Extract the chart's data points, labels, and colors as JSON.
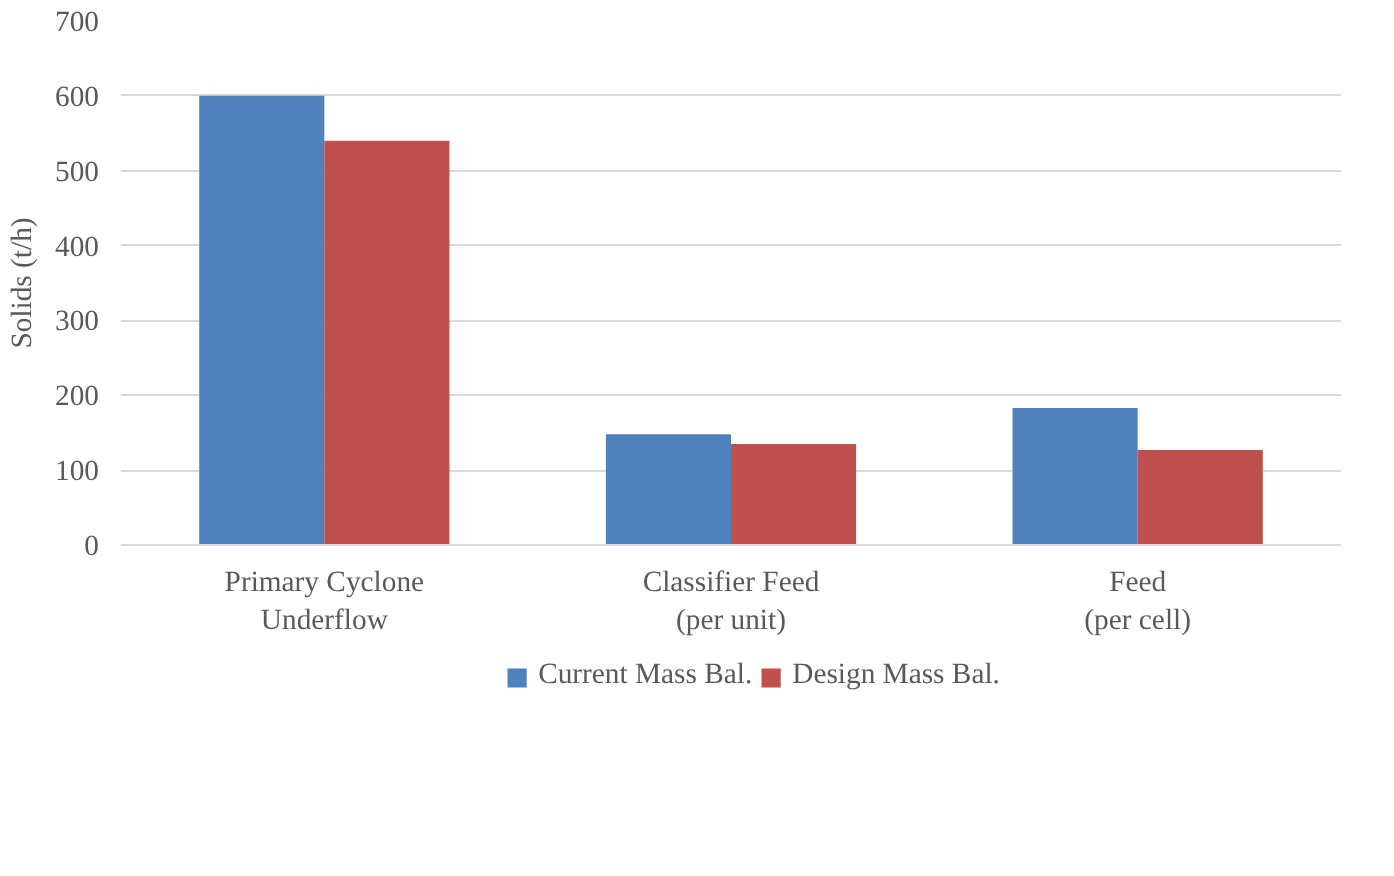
{
  "chart_data": {
    "type": "bar",
    "ylabel": "Solids (t/h)",
    "categories": [
      "Primary Cyclone\nUnderflow",
      "Classifier Feed\n(per unit)",
      "Feed\n(per cell)"
    ],
    "series": [
      {
        "name": "Current Mass Bal.",
        "color": "#4f81bd",
        "values": [
          600,
          148,
          183
        ]
      },
      {
        "name": "Design Mass Bal.",
        "color": "#c0504d",
        "values": [
          540,
          135,
          127
        ]
      }
    ],
    "ylim": [
      0,
      700
    ],
    "yticks": [
      0,
      100,
      200,
      300,
      400,
      500,
      600,
      700
    ],
    "grid": "y",
    "legend": "bottom"
  }
}
